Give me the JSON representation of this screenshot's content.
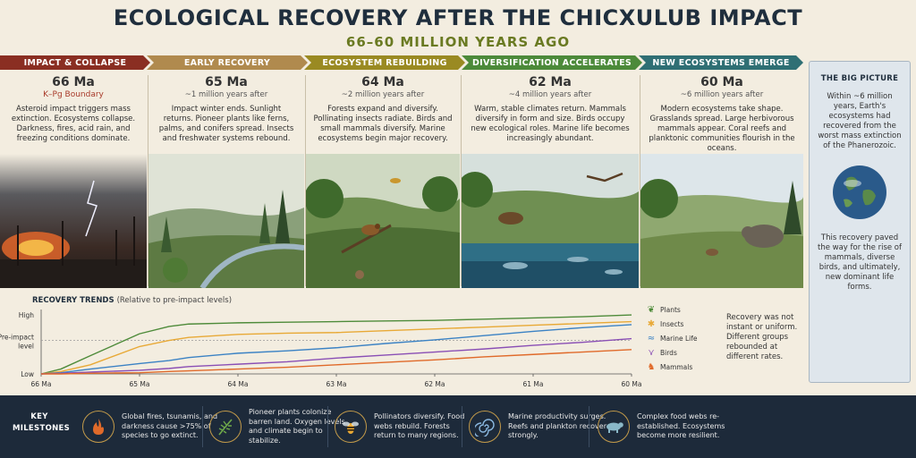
{
  "header": {
    "title": "ECOLOGICAL RECOVERY AFTER THE CHICXULUB IMPACT",
    "subtitle": "66–60 MILLION YEARS AGO"
  },
  "stages": [
    {
      "label": "IMPACT & COLLAPSE",
      "color": "#8a2e22",
      "date": "66 Ma",
      "sub": "K–Pg Boundary",
      "desc": "Asteroid impact triggers mass extinction. Ecosystems collapse. Darkness, fires, acid rain, and freezing conditions dominate."
    },
    {
      "label": "EARLY RECOVERY",
      "color": "#b08a4e",
      "date": "65 Ma",
      "sub": "~1 million years after",
      "desc": "Impact winter ends. Sunlight returns. Pioneer plants like ferns, palms, and conifers spread. Insects and freshwater systems rebound."
    },
    {
      "label": "ECOSYSTEM REBUILDING",
      "color": "#9a8a22",
      "date": "64 Ma",
      "sub": "~2 million years after",
      "desc": "Forests expand and diversify. Pollinating insects radiate. Birds and small mammals diversify. Marine ecosystems begin major recovery."
    },
    {
      "label": "DIVERSIFICATION ACCELERATES",
      "color": "#4c8a3a",
      "date": "62 Ma",
      "sub": "~4 million years after",
      "desc": "Warm, stable climates return. Mammals diversify in form and size. Birds occupy new ecological roles. Marine life becomes increasingly abundant."
    },
    {
      "label": "NEW ECOSYSTEMS EMERGE",
      "color": "#2f6f74",
      "date": "60 Ma",
      "sub": "~6 million years after",
      "desc": "Modern ecosystems take shape. Grasslands spread. Large herbivorous mammals appear. Coral reefs and planktonic communities flourish in the oceans."
    }
  ],
  "big_picture": {
    "title": "THE BIG PICTURE",
    "text1": "Within ~6 million years, Earth's ecosystems had recovered from the worst mass extinction of the Phanerozoic.",
    "text2": "This recovery paved the way for the rise of mammals, diverse birds, and ultimately, new dominant life forms."
  },
  "trends": {
    "title": "RECOVERY TRENDS",
    "note": "(Relative to pre-impact levels)",
    "sidenote": "Recovery was not instant or uniform. Different groups rebounded at different rates."
  },
  "chart_data": {
    "type": "line",
    "title": "RECOVERY TRENDS",
    "x_ticks": [
      "66 Ma",
      "65 Ma",
      "64 Ma",
      "63 Ma",
      "62 Ma",
      "61 Ma",
      "60 Ma"
    ],
    "y_ticks": [
      "High",
      "Pre-impact level",
      "Low"
    ],
    "xlim": [
      66,
      60
    ],
    "ylim": [
      0,
      1
    ],
    "preimpact_level": 0.55,
    "grid": false,
    "legend": "right",
    "x": [
      66,
      65.8,
      65.5,
      65,
      64.7,
      64.5,
      64,
      63.5,
      63,
      62.5,
      62,
      61.5,
      61,
      60.5,
      60
    ],
    "series": [
      {
        "name": "Plants",
        "color": "#4e8b3a",
        "icon": "leaf-icon",
        "values": [
          0.0,
          0.08,
          0.3,
          0.66,
          0.78,
          0.82,
          0.84,
          0.85,
          0.86,
          0.87,
          0.88,
          0.9,
          0.92,
          0.94,
          0.97
        ]
      },
      {
        "name": "Insects",
        "color": "#e8a936",
        "icon": "bee-icon",
        "values": [
          0.0,
          0.04,
          0.15,
          0.45,
          0.55,
          0.6,
          0.65,
          0.67,
          0.68,
          0.71,
          0.74,
          0.77,
          0.8,
          0.83,
          0.86
        ]
      },
      {
        "name": "Marine Life",
        "color": "#3b82c4",
        "icon": "wave-icon",
        "values": [
          0.0,
          0.02,
          0.08,
          0.17,
          0.22,
          0.27,
          0.34,
          0.38,
          0.43,
          0.5,
          0.56,
          0.63,
          0.7,
          0.76,
          0.81
        ]
      },
      {
        "name": "Birds",
        "color": "#8a4fb5",
        "icon": "bird-icon",
        "values": [
          0.0,
          0.01,
          0.03,
          0.06,
          0.09,
          0.12,
          0.16,
          0.2,
          0.26,
          0.31,
          0.36,
          0.41,
          0.47,
          0.52,
          0.58
        ]
      },
      {
        "name": "Mammals",
        "color": "#e06a2a",
        "icon": "mammal-icon",
        "values": [
          0.0,
          0.0,
          0.01,
          0.02,
          0.04,
          0.05,
          0.08,
          0.11,
          0.15,
          0.19,
          0.23,
          0.28,
          0.32,
          0.36,
          0.4
        ]
      }
    ]
  },
  "milestones": {
    "label": "KEY MILESTONES",
    "items": [
      {
        "icon": "fire-icon",
        "text": "Global fires, tsunamis, and darkness cause >75% of species to go extinct."
      },
      {
        "icon": "fern-icon",
        "text": "Pioneer plants colonize barren land. Oxygen levels and climate begin to stabilize."
      },
      {
        "icon": "bee-icon",
        "text": "Pollinators diversify. Food webs rebuild. Forests return to many regions."
      },
      {
        "icon": "ammonite-icon",
        "text": "Marine productivity surges. Reefs and plankton recover strongly."
      },
      {
        "icon": "mammal-icon",
        "text": "Complex food webs re-established. Ecosystems become more resilient."
      }
    ]
  }
}
